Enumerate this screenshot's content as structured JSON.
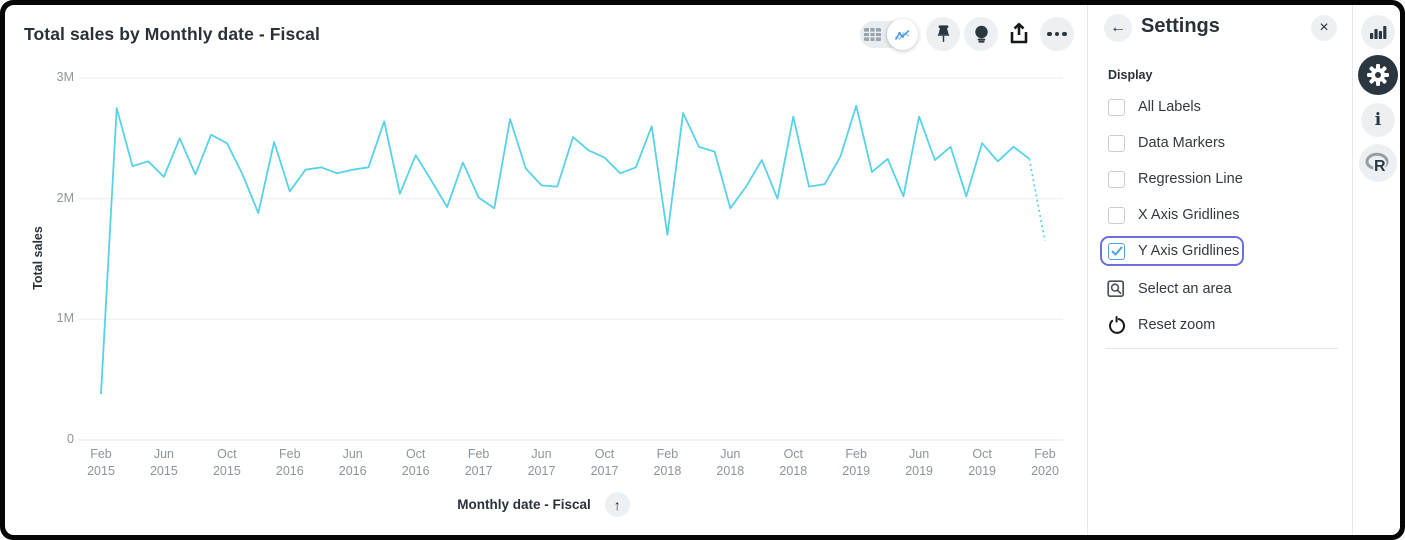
{
  "chart_card": {
    "title": "Total sales by Monthly date - Fiscal",
    "toolbar": [
      "table-view-toggle",
      "chart-view-toggle",
      "pin-button",
      "insights-button",
      "share-button",
      "more-options-button"
    ],
    "x_axis": {
      "label": "Monthly date - Fiscal",
      "sort_icon": "arrow-up"
    },
    "y_axis": {
      "label": "Total sales"
    }
  },
  "chart_data": {
    "type": "line",
    "title": "Total sales by Monthly date - Fiscal",
    "xlabel": "Monthly date - Fiscal",
    "ylabel": "Total sales",
    "unit": "millions",
    "ylim": [
      0,
      3000000
    ],
    "y_ticks": [
      "0",
      "1M",
      "2M",
      "3M"
    ],
    "y_tick_values": [
      0,
      1,
      2,
      3
    ],
    "gridlines": "y-axis-only",
    "line_color": "#57d2e8",
    "last_segment_style": "dotted",
    "x_tick_step": 4,
    "x": [
      "Feb 2015",
      "Mar 2015",
      "Apr 2015",
      "May 2015",
      "Jun 2015",
      "Jul 2015",
      "Aug 2015",
      "Sep 2015",
      "Oct 2015",
      "Nov 2015",
      "Dec 2015",
      "Jan 2016",
      "Feb 2016",
      "Mar 2016",
      "Apr 2016",
      "May 2016",
      "Jun 2016",
      "Jul 2016",
      "Aug 2016",
      "Sep 2016",
      "Oct 2016",
      "Nov 2016",
      "Dec 2016",
      "Jan 2017",
      "Feb 2017",
      "Mar 2017",
      "Apr 2017",
      "May 2017",
      "Jun 2017",
      "Jul 2017",
      "Aug 2017",
      "Sep 2017",
      "Oct 2017",
      "Nov 2017",
      "Dec 2017",
      "Jan 2018",
      "Feb 2018",
      "Mar 2018",
      "Apr 2018",
      "May 2018",
      "Jun 2018",
      "Jul 2018",
      "Aug 2018",
      "Sep 2018",
      "Oct 2018",
      "Nov 2018",
      "Dec 2018",
      "Jan 2019",
      "Feb 2019",
      "Mar 2019",
      "Apr 2019",
      "May 2019",
      "Jun 2019",
      "Jul 2019",
      "Aug 2019",
      "Sep 2019",
      "Oct 2019",
      "Nov 2019",
      "Dec 2019",
      "Jan 2020",
      "Feb 2020"
    ],
    "values": [
      0.38,
      2.75,
      2.27,
      2.31,
      2.18,
      2.5,
      2.2,
      2.53,
      2.46,
      2.2,
      1.88,
      2.47,
      2.06,
      2.24,
      2.26,
      2.21,
      2.24,
      2.26,
      2.64,
      2.04,
      2.36,
      2.15,
      1.93,
      2.3,
      2.01,
      1.92,
      2.66,
      2.25,
      2.11,
      2.1,
      2.51,
      2.4,
      2.34,
      2.21,
      2.26,
      2.6,
      1.7,
      2.71,
      2.43,
      2.39,
      1.92,
      2.1,
      2.32,
      2.0,
      2.68,
      2.1,
      2.12,
      2.35,
      2.77,
      2.22,
      2.33,
      2.02,
      2.68,
      2.32,
      2.43,
      2.02,
      2.46,
      2.31,
      2.43,
      2.33,
      1.65
    ]
  },
  "settings_panel": {
    "title": "Settings",
    "back_icon": "back-arrow",
    "close_icon": "close-x",
    "section_label": "Display",
    "checkboxes": [
      {
        "label": "All Labels",
        "checked": false
      },
      {
        "label": "Data Markers",
        "checked": false
      },
      {
        "label": "Regression Line",
        "checked": false
      },
      {
        "label": "X Axis Gridlines",
        "checked": false
      },
      {
        "label": "Y Axis Gridlines",
        "checked": true,
        "focused": true
      }
    ],
    "actions": [
      {
        "label": "Select an area",
        "icon": "select-area-icon"
      },
      {
        "label": "Reset zoom",
        "icon": "reset-zoom-icon"
      }
    ]
  },
  "right_rail": {
    "items": [
      {
        "name": "visualization",
        "icon": "bar-chart-icon",
        "active": false
      },
      {
        "name": "settings",
        "icon": "gear-icon",
        "active": true
      },
      {
        "name": "info",
        "icon": "info-icon",
        "active": false
      },
      {
        "name": "r-script",
        "icon": "r-logo-icon",
        "active": false
      }
    ]
  },
  "colors": {
    "line": "#57d2e8",
    "accent_blue": "#509ee3",
    "focus_ring": "#6c6fde",
    "dark_text": "#2b3138",
    "muted_text": "#8d949c",
    "gridline": "#ededed",
    "zero_line": "#e4e4e4"
  }
}
